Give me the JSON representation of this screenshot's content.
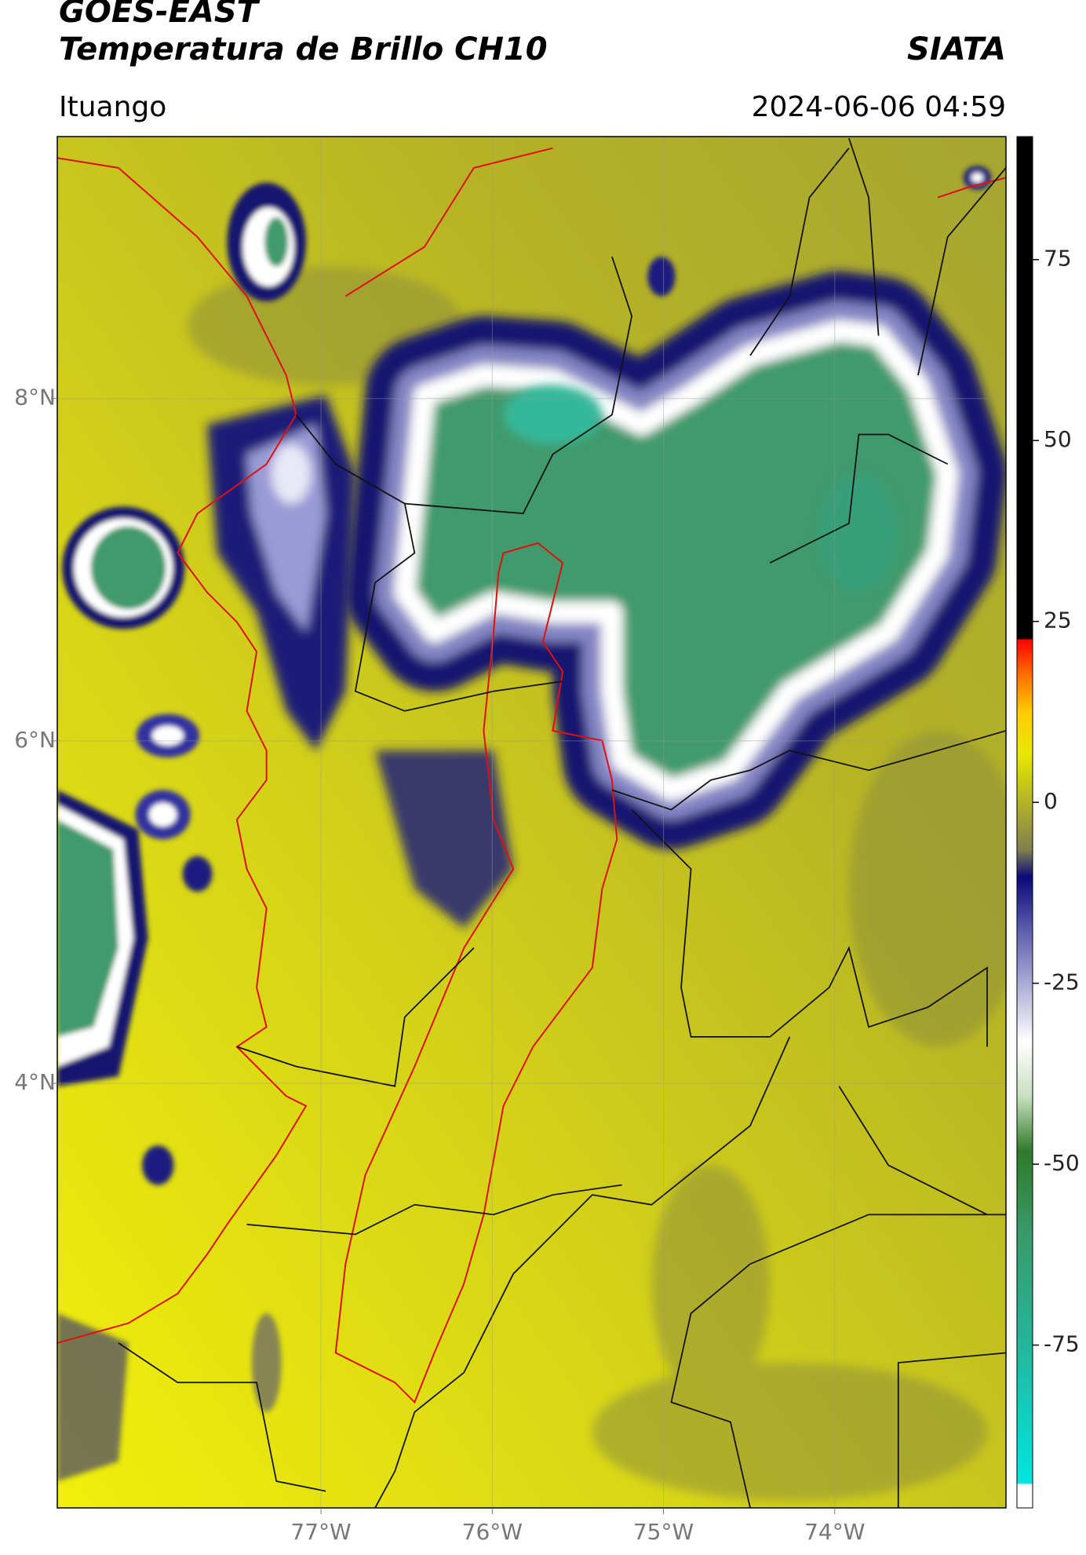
{
  "header": {
    "title": "GOES-EAST",
    "subtitle": "Temperatura de Brillo CH10",
    "source": "SIATA",
    "location": "Ituango",
    "datetime": "2024-06-06 04:59"
  },
  "map": {
    "xlim": [
      -78.54,
      -73.0
    ],
    "ylim": [
      1.52,
      9.53
    ],
    "xticks": [
      {
        "value": -77,
        "label": "77°W"
      },
      {
        "value": -76,
        "label": "76°W"
      },
      {
        "value": -75,
        "label": "75°W"
      },
      {
        "value": -74,
        "label": "74°W"
      }
    ],
    "yticks": [
      {
        "value": 8,
        "label": "8°N"
      },
      {
        "value": 6,
        "label": "6°N"
      },
      {
        "value": 4,
        "label": "4°N"
      }
    ],
    "grid": true
  },
  "colorbar": {
    "lim": [
      -97.5,
      92
    ],
    "ticks": [
      75,
      50,
      25,
      0,
      -25,
      -50,
      -75
    ]
  }
}
